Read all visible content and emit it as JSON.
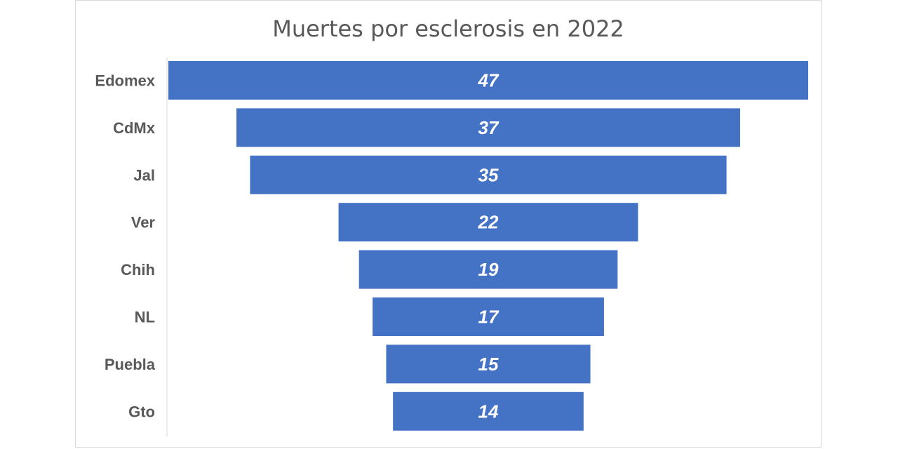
{
  "chart_data": {
    "type": "bar",
    "orientation": "horizontal-funnel",
    "title": "Muertes por esclerosis en 2022",
    "categories": [
      "Edomex",
      "CdMx",
      "Jal",
      "Ver",
      "Chih",
      "NL",
      "Puebla",
      "Gto"
    ],
    "values": [
      47,
      37,
      35,
      22,
      19,
      17,
      15,
      14
    ],
    "data_labels": [
      "47",
      "37",
      "35",
      "22",
      "19",
      "17",
      "15",
      "14"
    ],
    "xlabel": "",
    "ylabel": "",
    "xlim": [
      0,
      47
    ],
    "grid": false,
    "legend": "none",
    "bar_color": "#4472C4",
    "label_color": "#FFFFFF"
  }
}
